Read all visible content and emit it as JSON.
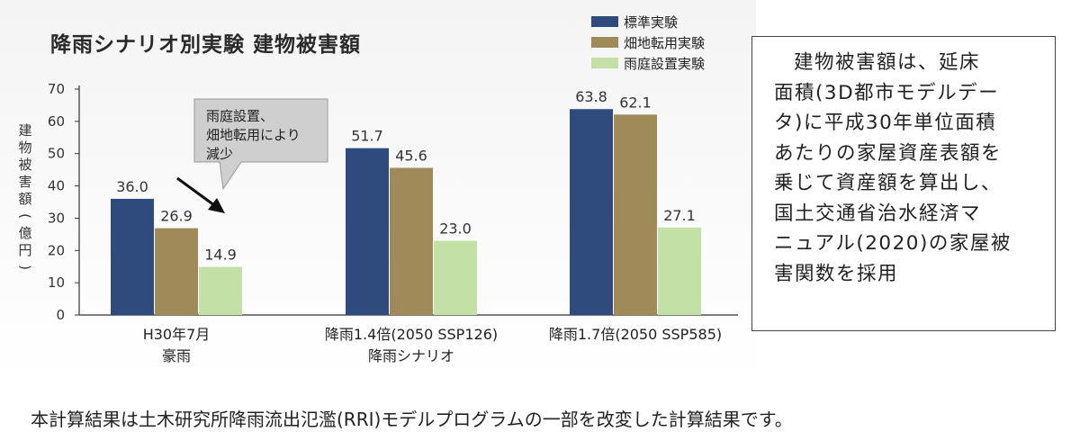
{
  "chart_data": {
    "type": "bar",
    "title": "降雨シナリオ別実験 建物被害額",
    "ylabel": "建物被害額(億円)",
    "ylim": [
      0,
      70
    ],
    "yticks": [
      0,
      10,
      20,
      30,
      40,
      50,
      60,
      70
    ],
    "xlabel": "降雨シナリオ",
    "categories": [
      [
        "H30年7月",
        "豪雨"
      ],
      [
        "降雨1.4倍(2050 SSP126)"
      ],
      [
        "降雨1.7倍(2050 SSP585)"
      ]
    ],
    "series": [
      {
        "name": "標準実験",
        "values": [
          36.0,
          51.7,
          63.8
        ],
        "labels": [
          "36.0",
          "51.7",
          "63.8"
        ],
        "color": "#2f4a7d"
      },
      {
        "name": "畑地転用実験",
        "values": [
          26.9,
          45.6,
          62.1
        ],
        "labels": [
          "26.9",
          "45.6",
          "62.1"
        ],
        "color": "#a08a5a"
      },
      {
        "name": "雨庭設置実験",
        "values": [
          14.9,
          23.0,
          27.1
        ],
        "labels": [
          "14.9",
          "23.0",
          "27.1"
        ],
        "color": "#c3e0a6"
      }
    ],
    "legend_position": "top-right",
    "annotation": {
      "lines": [
        "雨庭設置、",
        "畑地転用により",
        "減少"
      ]
    },
    "grid": false
  },
  "note": {
    "lines": [
      "建物被害額は、延床",
      "面積(3D都市モデルデー",
      "タ)に平成30年単位面積",
      "あたりの家屋資産表額を",
      "乗じて資産額を算出し、",
      "国土交通省治水経済マ",
      "ニュアル(2020)の家屋被",
      "害関数を採用"
    ]
  },
  "footnote": "本計算結果は土木研究所降雨流出氾濫(RRI)モデルプログラムの一部を改変した計算結果です。"
}
